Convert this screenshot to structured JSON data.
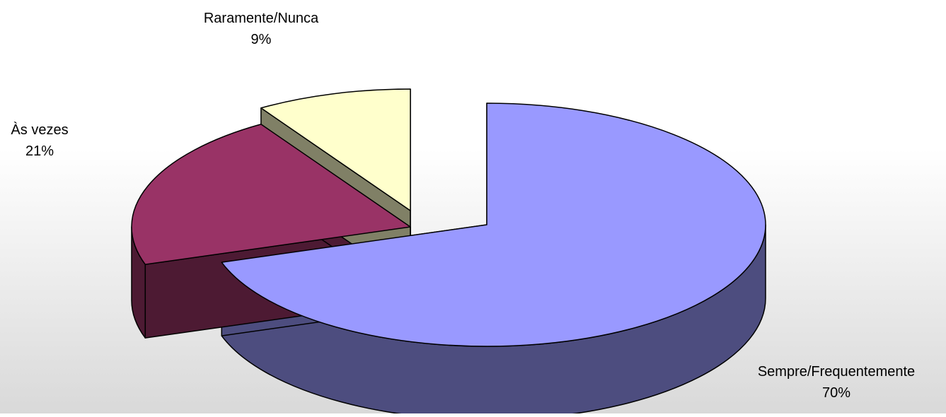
{
  "chart_data": {
    "type": "pie",
    "style": "3d-exploded",
    "title": "",
    "categories": [
      "Sempre/Frequentemente",
      "Às vezes",
      "Raramente/Nunca"
    ],
    "values": [
      70,
      21,
      9
    ],
    "value_labels": [
      "70%",
      "21%",
      "9%"
    ],
    "colors": {
      "top": [
        "#9999ff",
        "#993366",
        "#ffffcc"
      ],
      "side": [
        "#4d4d7f",
        "#4d1a33",
        "#808066"
      ]
    },
    "legend": "none"
  }
}
